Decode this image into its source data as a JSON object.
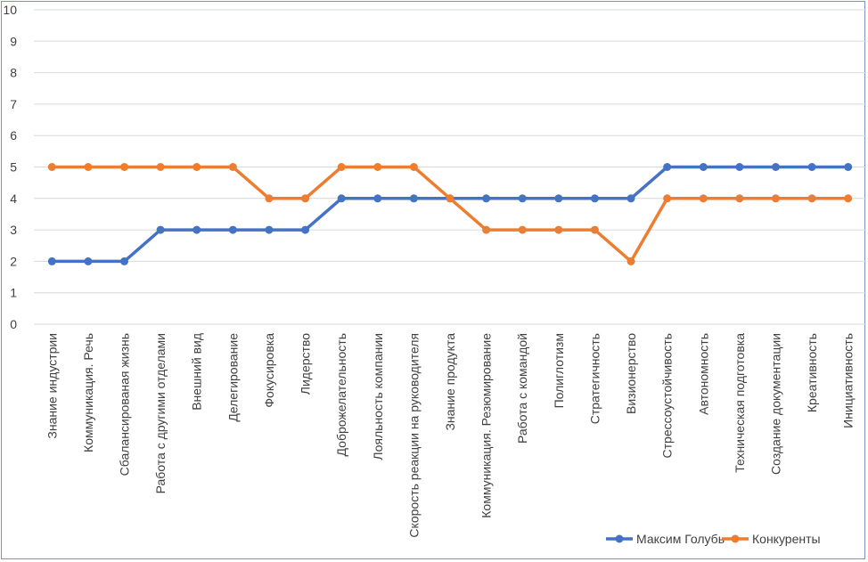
{
  "chart_data": {
    "type": "line",
    "title": "",
    "xlabel": "",
    "ylabel": "",
    "ylim": [
      0,
      10
    ],
    "yticks": [
      "0",
      "1",
      "2",
      "3",
      "4",
      "5",
      "6",
      "7",
      "8",
      "9",
      "10"
    ],
    "grid": "horizontal",
    "legend_position": "bottom-right",
    "categories": [
      "Знание индустрии",
      "Коммуникация. Речь",
      "Сбалансированая жизнь",
      "Работа с другими отделами",
      "Внешний вид",
      "Делегирование",
      "Фокусировка",
      "Лидерство",
      "Доброжелательность",
      "Лояльность компании",
      "Скорость реакции на руководителя",
      "Знание продукта",
      "Коммуникация. Резюмирование",
      "Работа с командой",
      "Полиглотизм",
      "Стратегичность",
      "Визионерство",
      "Стрессоустойчивость",
      "Автономность",
      "Техническая подготовка",
      "Создание документации",
      "Креативность",
      "Инициативность"
    ],
    "series": [
      {
        "name": "Максим Голубь",
        "color": "#4472c4",
        "values": [
          2,
          2,
          2,
          3,
          3,
          3,
          3,
          3,
          4,
          4,
          4,
          4,
          4,
          4,
          4,
          4,
          4,
          5,
          5,
          5,
          5,
          5,
          5
        ]
      },
      {
        "name": "Конкуренты",
        "color": "#ed7d31",
        "values": [
          5,
          5,
          5,
          5,
          5,
          5,
          4,
          4,
          5,
          5,
          5,
          4,
          3,
          3,
          3,
          3,
          2,
          4,
          4,
          4,
          4,
          4,
          4
        ]
      }
    ]
  }
}
